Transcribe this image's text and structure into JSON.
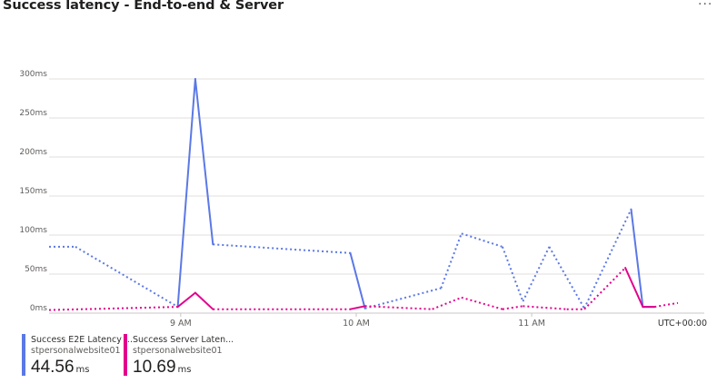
{
  "title": "Success latency - End-to-end & Server",
  "more_icon": "more-ellipsis-icon",
  "timezone_label": "UTC+00:00",
  "colors": {
    "e2e": "#5b78e6",
    "server": "#e3008c",
    "grid": "#e1dfdd",
    "axis_text": "#605e5c"
  },
  "chart_data": {
    "type": "line",
    "title": "Success latency - End-to-end & Server",
    "xlabel": "",
    "ylabel": "",
    "y_ticks": [
      "0ms",
      "50ms",
      "100ms",
      "150ms",
      "200ms",
      "250ms",
      "300ms"
    ],
    "ylim": [
      0,
      300
    ],
    "x_ticks": [
      "9 AM",
      "10 AM",
      "11 AM"
    ],
    "xlim": [
      "08:15",
      "11:59"
    ],
    "grid": true,
    "legend_position": "bottom-left",
    "line_style_note": "dotted segments span intervals with no data",
    "series": [
      {
        "name": "Success E2E Latency ...",
        "resource": "stpersonalwebsite01",
        "summary_value": "44.56",
        "summary_unit": "ms",
        "color": "#5b78e6",
        "points": [
          [
            "08:15",
            85
          ],
          [
            "08:24",
            85
          ],
          [
            "08:59",
            8
          ],
          [
            "09:05",
            300
          ],
          [
            "09:11",
            88
          ],
          [
            "09:58",
            77
          ],
          [
            "10:03",
            6
          ],
          [
            "10:29",
            32
          ],
          [
            "10:36",
            102
          ],
          [
            "10:50",
            85
          ],
          [
            "10:57",
            15
          ],
          [
            "11:06",
            85
          ],
          [
            "11:18",
            6
          ],
          [
            "11:34",
            133
          ],
          [
            "11:38",
            8
          ],
          [
            "11:42",
            8
          ]
        ],
        "segment_styles": [
          "dotted",
          "dotted",
          "solid",
          "solid",
          "dotted",
          "solid",
          "dotted",
          "dotted",
          "dotted",
          "dotted",
          "dotted",
          "dotted",
          "dotted",
          "solid",
          "solid"
        ]
      },
      {
        "name": "Success Server Laten...",
        "resource": "stpersonalwebsite01",
        "summary_value": "10.69",
        "summary_unit": "ms",
        "color": "#e3008c",
        "points": [
          [
            "08:15",
            4
          ],
          [
            "08:59",
            8
          ],
          [
            "09:05",
            26
          ],
          [
            "09:11",
            5
          ],
          [
            "09:58",
            5
          ],
          [
            "10:03",
            9
          ],
          [
            "10:26",
            5
          ],
          [
            "10:36",
            20
          ],
          [
            "10:50",
            5
          ],
          [
            "10:57",
            9
          ],
          [
            "11:12",
            5
          ],
          [
            "11:18",
            5
          ],
          [
            "11:32",
            58
          ],
          [
            "11:38",
            8
          ],
          [
            "11:42",
            8
          ],
          [
            "11:50",
            13
          ]
        ],
        "segment_styles": [
          "dotted",
          "solid",
          "solid",
          "dotted",
          "solid",
          "dotted",
          "dotted",
          "dotted",
          "dotted",
          "dotted",
          "dotted",
          "dotted",
          "solid",
          "solid",
          "dotted"
        ]
      }
    ]
  }
}
